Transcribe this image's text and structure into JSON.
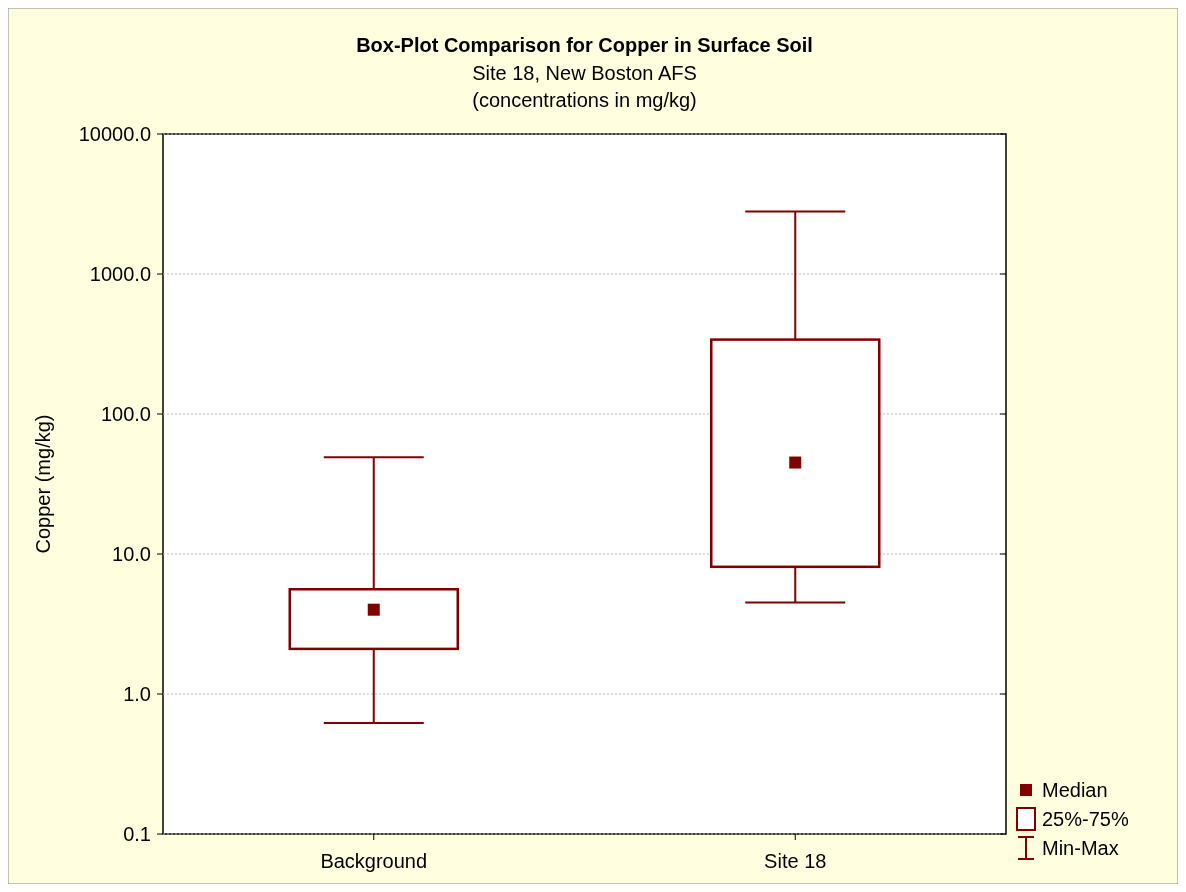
{
  "chart_data": {
    "type": "box",
    "title": "Box-Plot Comparison for Copper in Surface Soil",
    "subtitle": "Site 18, New Boston AFS\n(concentrations in mg/kg)",
    "ylabel": "Copper (mg/kg)",
    "categories": [
      "Background",
      "Site 18"
    ],
    "series": [
      {
        "color": "#800000",
        "boxes": [
          {
            "low": 0.62,
            "q1": 2.1,
            "median": 4.0,
            "q3": 5.6,
            "high": 49
          },
          {
            "low": 4.5,
            "q1": 8.1,
            "median": 45,
            "q3": 340,
            "high": 2800
          }
        ]
      }
    ],
    "log": true,
    "ylim": [
      0.1,
      10000
    ],
    "yticks": [
      {
        "value": 0.1,
        "label": "0.1"
      },
      {
        "value": 1,
        "label": "1.0"
      },
      {
        "value": 10,
        "label": "10.0"
      },
      {
        "value": 100,
        "label": "100.0"
      },
      {
        "value": 1000,
        "label": "1000.0"
      },
      {
        "value": 10000,
        "label": "10000.0"
      }
    ],
    "grid": "y",
    "annotations": [
      "Median",
      "25%-75%",
      "Min-Max"
    ]
  }
}
